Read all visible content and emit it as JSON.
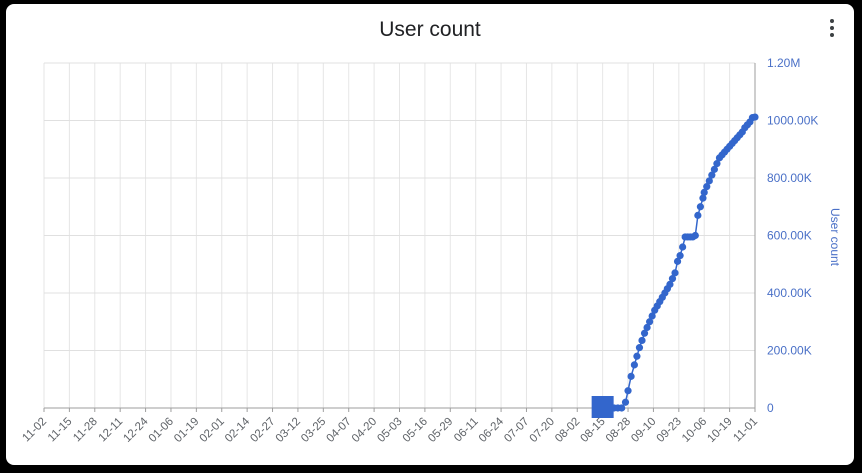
{
  "card": {
    "title": "User count"
  },
  "menu": {
    "icon": "more-vert-icon"
  },
  "chart_data": {
    "type": "scatter",
    "title": "User count",
    "xlabel": "",
    "ylabel": "User count",
    "y_axis_position": "right",
    "ylim": [
      0,
      1200000
    ],
    "yticks": [
      0,
      200000,
      400000,
      600000,
      800000,
      1000000,
      1200000
    ],
    "ytick_labels": [
      "0",
      "200.00K",
      "400.00K",
      "600.00K",
      "800.00K",
      "1000.00K",
      "1.20M"
    ],
    "xticks": [
      "11-02",
      "11-15",
      "11-28",
      "12-11",
      "12-24",
      "01-06",
      "01-19",
      "02-01",
      "02-14",
      "02-27",
      "03-12",
      "03-25",
      "04-07",
      "04-20",
      "05-03",
      "05-16",
      "05-29",
      "06-11",
      "06-24",
      "07-07",
      "07-20",
      "08-02",
      "08-15",
      "08-28",
      "09-10",
      "09-23",
      "10-06",
      "10-19",
      "11-01"
    ],
    "grid": true,
    "series_color": "#3366cc",
    "highlight_box": {
      "x": "08-15",
      "y": 0
    },
    "series": [
      {
        "x": [
          22.0,
          22.15,
          22.3,
          22.45,
          22.6,
          22.75,
          22.9,
          23.0,
          23.12,
          23.25,
          23.35,
          23.45,
          23.55,
          23.65,
          23.75,
          23.85,
          23.95,
          24.05,
          24.15,
          24.25,
          24.35,
          24.45,
          24.55,
          24.65,
          24.75,
          24.85,
          24.95,
          25.05,
          25.15,
          25.25,
          25.35,
          25.45,
          25.55,
          25.65,
          25.75,
          25.85,
          25.95,
          26.0,
          26.1,
          26.2,
          26.3,
          26.4,
          26.5,
          26.6,
          26.7,
          26.8,
          26.9,
          27.0,
          27.1,
          27.2,
          27.3,
          27.4,
          27.5,
          27.6,
          27.7,
          27.8,
          27.9,
          28.0
        ],
        "y": [
          0,
          0,
          0,
          0,
          0,
          0,
          20000,
          60000,
          110000,
          150000,
          180000,
          210000,
          235000,
          260000,
          280000,
          300000,
          320000,
          340000,
          355000,
          370000,
          385000,
          400000,
          415000,
          430000,
          450000,
          470000,
          510000,
          530000,
          560000,
          595000,
          595000,
          595000,
          595000,
          600000,
          670000,
          700000,
          730000,
          750000,
          770000,
          790000,
          810000,
          830000,
          850000,
          870000,
          880000,
          890000,
          900000,
          910000,
          920000,
          930000,
          940000,
          950000,
          960000,
          975000,
          985000,
          995000,
          1010000,
          1012000
        ]
      }
    ]
  }
}
